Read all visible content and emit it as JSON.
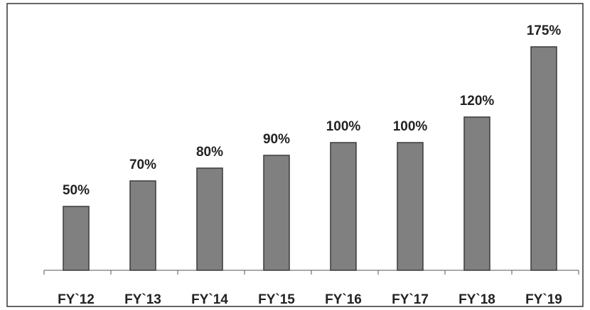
{
  "chart_data": {
    "type": "bar",
    "categories": [
      "FY`12",
      "FY`13",
      "FY`14",
      "FY`15",
      "FY`16",
      "FY`17",
      "FY`18",
      "FY`19"
    ],
    "values": [
      50,
      70,
      80,
      90,
      100,
      100,
      120,
      175
    ],
    "value_labels": [
      "50%",
      "70%",
      "80%",
      "90%",
      "100%",
      "100%",
      "120%",
      "175%"
    ],
    "color": "#808080"
  }
}
